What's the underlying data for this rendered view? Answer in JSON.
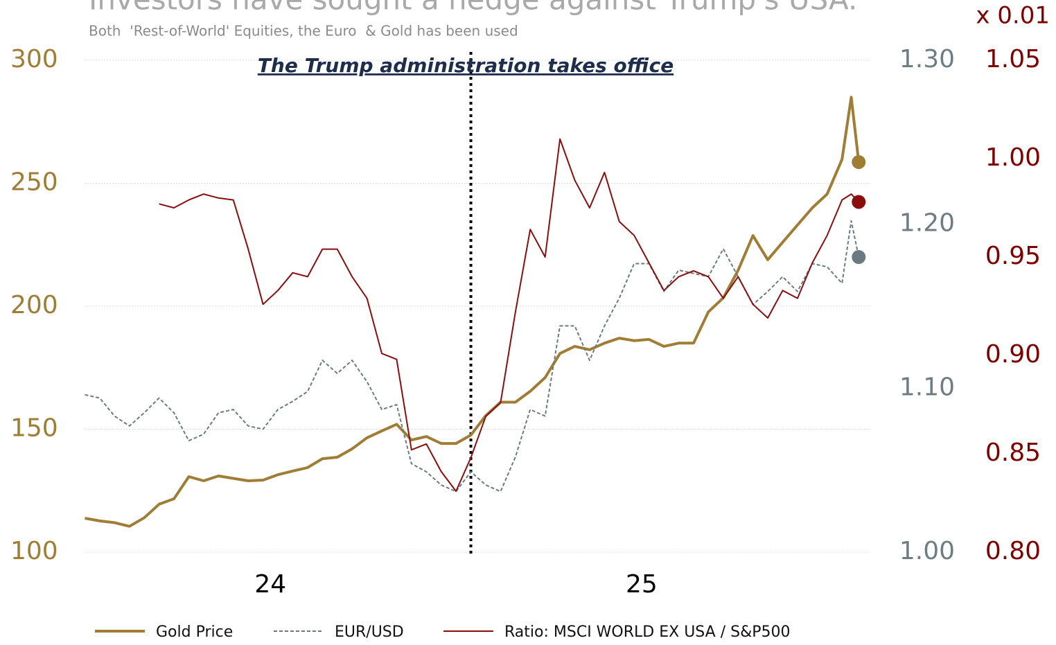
{
  "chart_data": {
    "type": "line",
    "title": "Investors have sought a hedge against Trump's USA.",
    "subtitle": "Both  'Rest-of-World' Equities, the Euro  & Gold has been used",
    "annotation": {
      "text": "The Trump administration takes office",
      "x": 2025.04
    },
    "y3_label": "x 0.01",
    "x": [
      2024.0,
      2024.04,
      2024.08,
      2024.12,
      2024.16,
      2024.2,
      2024.24,
      2024.28,
      2024.32,
      2024.36,
      2024.4,
      2024.44,
      2024.48,
      2024.52,
      2024.56,
      2024.6,
      2024.64,
      2024.68,
      2024.72,
      2024.76,
      2024.8,
      2024.84,
      2024.88,
      2024.92,
      2024.96,
      2025.0,
      2025.04,
      2025.08,
      2025.12,
      2025.16,
      2025.2,
      2025.24,
      2025.28,
      2025.32,
      2025.36,
      2025.4,
      2025.44,
      2025.48,
      2025.52,
      2025.56,
      2025.6,
      2025.64,
      2025.68,
      2025.72,
      2025.76,
      2025.8,
      2025.84,
      2025.88,
      2025.92,
      2025.96,
      2026.0,
      2026.04,
      2026.065,
      2026.085
    ],
    "xlim": [
      2024.0,
      2026.12
    ],
    "xticks": [
      {
        "value": 2024.5,
        "label": "24"
      },
      {
        "value": 2025.5,
        "label": "25"
      }
    ],
    "ylim": [
      100,
      300
    ],
    "yticks": [
      100,
      150,
      200,
      250,
      300
    ],
    "y2lim": [
      1.0,
      1.3
    ],
    "y2ticks": [
      {
        "value": 1.0,
        "label": "1.00"
      },
      {
        "value": 1.1,
        "label": "1.10"
      },
      {
        "value": 1.2,
        "label": "1.20"
      },
      {
        "value": 1.3,
        "label": "1.30"
      }
    ],
    "y3lim": [
      0.8,
      1.05
    ],
    "y3ticks": [
      {
        "value": 0.8,
        "label": "0.80"
      },
      0.85,
      {
        "value": 0.9,
        "label": "0.90"
      },
      0.95,
      {
        "value": 1.0,
        "label": "1.00"
      },
      1.05
    ],
    "grid": true,
    "legend": "bottom",
    "series": [
      {
        "name": "Gold Price",
        "color": "#a07d35",
        "axis": "y",
        "style": "solid",
        "values": [
          113.8,
          112.7,
          112,
          110.5,
          114,
          119.5,
          121.7,
          130.7,
          129,
          131,
          130,
          129,
          129.3,
          131.5,
          133,
          134.4,
          138,
          138.6,
          142,
          146.5,
          149.3,
          152,
          145.6,
          147,
          144.2,
          144.2,
          147.6,
          155.5,
          161,
          161,
          165.4,
          171,
          180.8,
          183.7,
          182.3,
          185,
          187,
          186,
          186.5,
          183.7,
          185,
          185,
          197.7,
          203.4,
          214.6,
          228.7,
          218.9,
          226,
          233,
          240,
          245.6,
          259.7,
          285,
          258.6
        ]
      },
      {
        "name": "EUR/USD",
        "color": "#6b7a82",
        "axis": "y2",
        "style": "dashed",
        "values": [
          1.096,
          1.094,
          1.083,
          1.077,
          1.085,
          1.094,
          1.085,
          1.068,
          1.072,
          1.085,
          1.087,
          1.077,
          1.075,
          1.087,
          1.092,
          1.098,
          1.117,
          1.109,
          1.117,
          1.104,
          1.087,
          1.09,
          1.054,
          1.049,
          1.041,
          1.037,
          1.049,
          1.041,
          1.037,
          1.058,
          1.087,
          1.083,
          1.138,
          1.138,
          1.117,
          1.138,
          1.155,
          1.176,
          1.176,
          1.159,
          1.172,
          1.17,
          1.168,
          1.185,
          1.168,
          1.151,
          1.159,
          1.168,
          1.159,
          1.176,
          1.174,
          1.164,
          1.202,
          1.18
        ]
      },
      {
        "name": "Ratio: MSCI WORLD EX USA / S&P500",
        "color": "#8b0d0d",
        "axis": "y3",
        "style": "solid",
        "values": [
          null,
          null,
          null,
          null,
          null,
          0.977,
          0.975,
          0.979,
          0.982,
          0.98,
          0.979,
          0.954,
          0.926,
          0.933,
          0.942,
          0.94,
          0.954,
          0.954,
          0.94,
          0.929,
          0.901,
          0.898,
          0.852,
          0.855,
          0.841,
          0.831,
          0.848,
          0.869,
          0.876,
          0.922,
          0.964,
          0.95,
          1.01,
          0.989,
          0.975,
          0.993,
          0.968,
          0.961,
          0.947,
          0.933,
          0.94,
          0.943,
          0.94,
          0.929,
          0.94,
          0.926,
          0.919,
          0.933,
          0.929,
          0.947,
          0.961,
          0.979,
          0.982,
          0.978
        ]
      }
    ]
  }
}
